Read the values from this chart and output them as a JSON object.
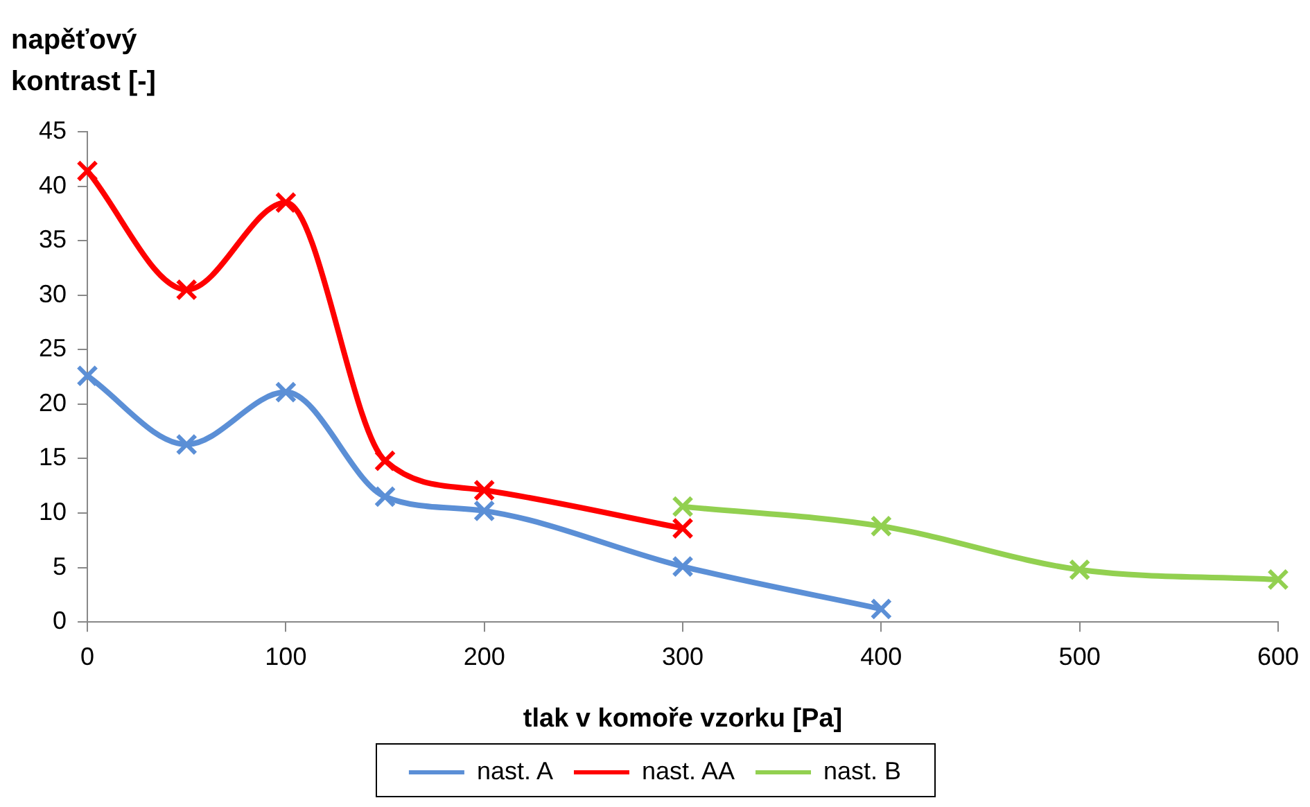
{
  "chart_data": {
    "type": "line",
    "xlabel": "tlak v komoře vzorku [Pa]",
    "ylabel": "napěťový kontrast [-]",
    "xlim": [
      0,
      600
    ],
    "xticks": [
      0,
      100,
      200,
      300,
      400,
      500,
      600
    ],
    "ylim": [
      0,
      45
    ],
    "yticks": [
      0,
      5,
      10,
      15,
      20,
      25,
      30,
      35,
      40,
      45
    ],
    "grid": false,
    "legend": "bottom",
    "marker": "cross",
    "line_style": "solid",
    "series": [
      {
        "name": "nast. A",
        "color": "#5b8fd6",
        "x": [
          0,
          50,
          100,
          150,
          200,
          300,
          400
        ],
        "values": [
          22.6,
          16.3,
          21.1,
          11.5,
          10.2,
          5.1,
          1.2
        ]
      },
      {
        "name": "nast. AA",
        "color": "#ff0000",
        "x": [
          0,
          50,
          100,
          150,
          200,
          300
        ],
        "values": [
          41.4,
          30.5,
          38.5,
          14.8,
          12.1,
          8.6
        ]
      },
      {
        "name": "nast. B",
        "color": "#92d050",
        "x": [
          300,
          400,
          500,
          600
        ],
        "values": [
          10.6,
          8.8,
          4.8,
          3.9
        ]
      }
    ]
  }
}
